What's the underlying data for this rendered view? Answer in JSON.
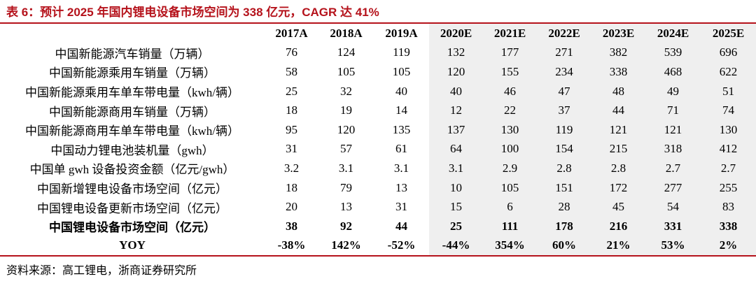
{
  "title": "表 6：预计 2025 年国内锂电设备市场空间为 338 亿元，CAGR 达 41%",
  "header": [
    "",
    "2017A",
    "2018A",
    "2019A",
    "2020E",
    "2021E",
    "2022E",
    "2023E",
    "2024E",
    "2025E"
  ],
  "rows": [
    {
      "label": "中国新能源汽车销量（万辆）",
      "values": [
        "76",
        "124",
        "119",
        "132",
        "177",
        "271",
        "382",
        "539",
        "696"
      ]
    },
    {
      "label": "中国新能源乘用车销量（万辆）",
      "values": [
        "58",
        "105",
        "105",
        "120",
        "155",
        "234",
        "338",
        "468",
        "622"
      ]
    },
    {
      "label": "中国新能源乘用车单车带电量（kwh/辆）",
      "values": [
        "25",
        "32",
        "40",
        "40",
        "46",
        "47",
        "48",
        "49",
        "51"
      ]
    },
    {
      "label": "中国新能源商用车销量（万辆）",
      "values": [
        "18",
        "19",
        "14",
        "12",
        "22",
        "37",
        "44",
        "71",
        "74"
      ]
    },
    {
      "label": "中国新能源商用车单车带电量（kwh/辆）",
      "values": [
        "95",
        "120",
        "135",
        "137",
        "130",
        "119",
        "121",
        "121",
        "130"
      ]
    },
    {
      "label": "中国动力锂电池装机量（gwh）",
      "values": [
        "31",
        "57",
        "61",
        "64",
        "100",
        "154",
        "215",
        "318",
        "412"
      ]
    },
    {
      "label": "中国单 gwh 设备投资金额（亿元/gwh）",
      "values": [
        "3.2",
        "3.1",
        "3.1",
        "3.1",
        "2.9",
        "2.8",
        "2.8",
        "2.7",
        "2.7"
      ]
    },
    {
      "label": "中国新增锂电设备市场空间（亿元）",
      "values": [
        "18",
        "79",
        "13",
        "10",
        "105",
        "151",
        "172",
        "277",
        "255"
      ]
    },
    {
      "label": "中国锂电设备更新市场空间（亿元）",
      "values": [
        "20",
        "13",
        "31",
        "15",
        "6",
        "28",
        "45",
        "54",
        "83"
      ]
    },
    {
      "label": "中国锂电设备市场空间（亿元）",
      "values": [
        "38",
        "92",
        "44",
        "25",
        "111",
        "178",
        "216",
        "331",
        "338"
      ]
    },
    {
      "label": "YOY",
      "values": [
        "-38%",
        "142%",
        "-52%",
        "-44%",
        "354%",
        "60%",
        "21%",
        "53%",
        "2%"
      ]
    }
  ],
  "source": "资料来源：高工锂电，浙商证券研究所",
  "colors": {
    "accent": "#b5121b",
    "shade": "#efefef"
  }
}
